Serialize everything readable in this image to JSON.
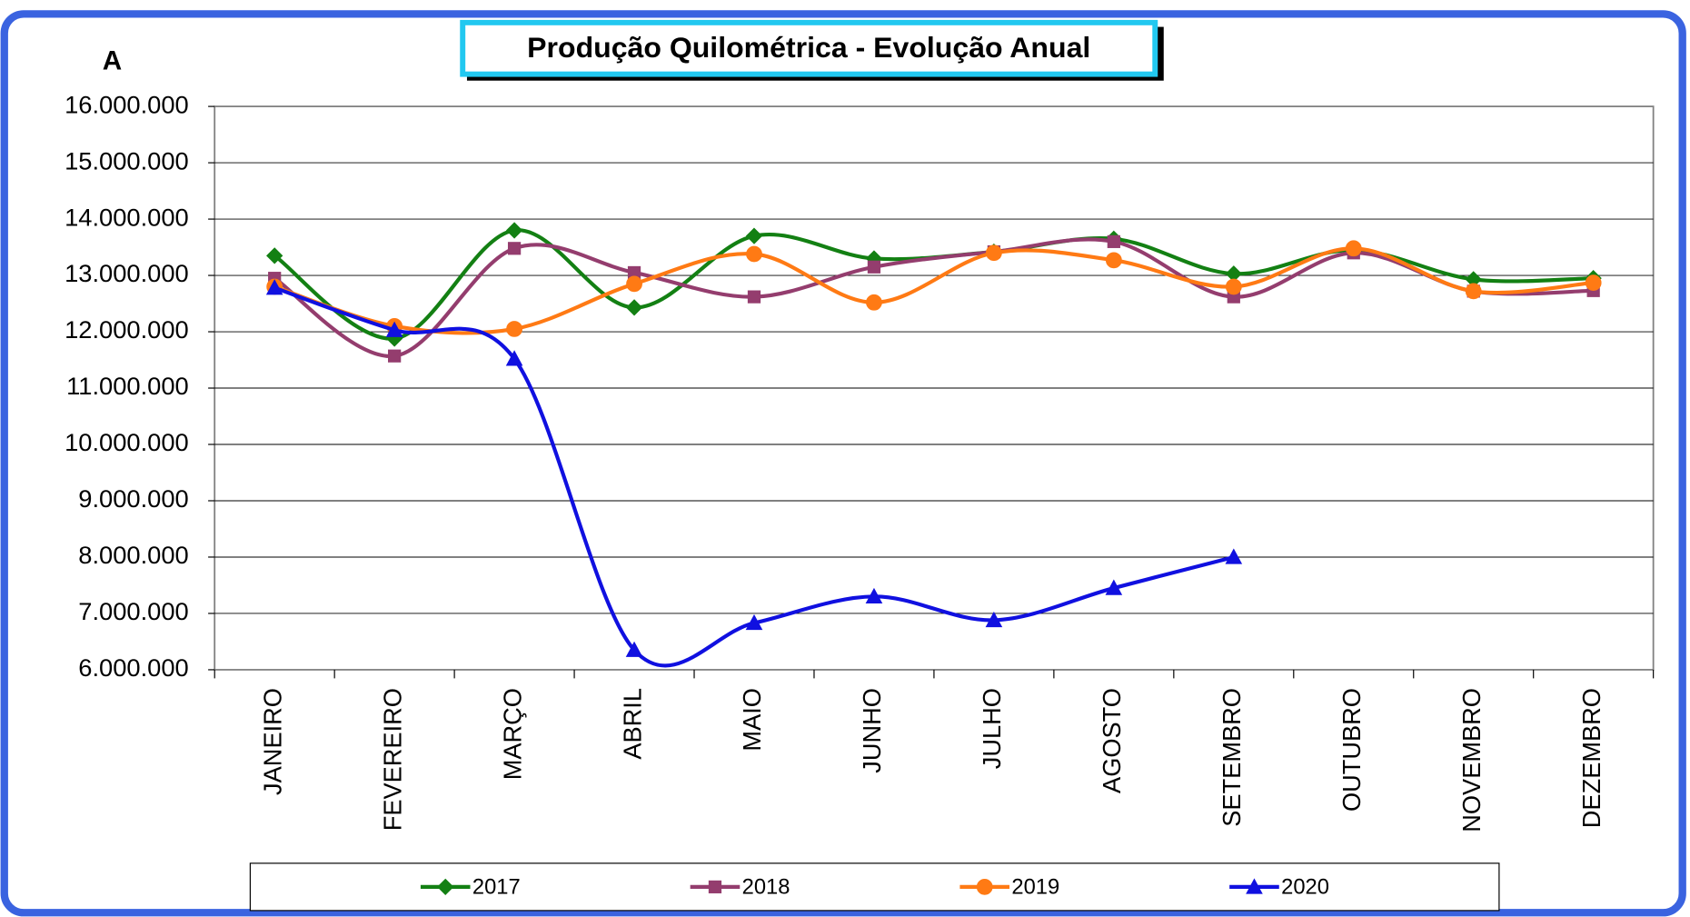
{
  "chart_data": {
    "type": "line",
    "title": "Produção Quilométrica  -  Evolução Anual",
    "panel_label": "A",
    "categories": [
      "JANEIRO",
      "FEVEREIRO",
      "MARÇO",
      "ABRIL",
      "MAIO",
      "JUNHO",
      "JULHO",
      "AGOSTO",
      "SETEMBRO",
      "OUTUBRO",
      "NOVEMBRO",
      "DEZEMBRO"
    ],
    "series": [
      {
        "name": "2017",
        "color": "#138013",
        "marker": "diamond",
        "values": [
          13350000,
          11880000,
          13800000,
          12430000,
          13700000,
          13300000,
          13420000,
          13650000,
          13030000,
          13450000,
          12930000,
          12950000
        ]
      },
      {
        "name": "2018",
        "color": "#943d6e",
        "marker": "square",
        "values": [
          12950000,
          11570000,
          13480000,
          13050000,
          12620000,
          13150000,
          13420000,
          13600000,
          12620000,
          13400000,
          12720000,
          12730000
        ]
      },
      {
        "name": "2019",
        "color": "#ff7a14",
        "marker": "circle",
        "values": [
          12800000,
          12100000,
          12050000,
          12850000,
          13380000,
          12520000,
          13400000,
          13270000,
          12800000,
          13480000,
          12720000,
          12870000
        ]
      },
      {
        "name": "2020",
        "color": "#1010e0",
        "marker": "triangle",
        "values": [
          12780000,
          12030000,
          11520000,
          6350000,
          6830000,
          7300000,
          6880000,
          7450000,
          8000000,
          null,
          null,
          null
        ]
      }
    ],
    "ylim": [
      6000000,
      16000000
    ],
    "yticks": [
      {
        "value": 6000000,
        "label": "6.000.000"
      },
      {
        "value": 7000000,
        "label": "7.000.000"
      },
      {
        "value": 8000000,
        "label": "8.000.000"
      },
      {
        "value": 9000000,
        "label": "9.000.000"
      },
      {
        "value": 10000000,
        "label": "10.000.000"
      },
      {
        "value": 11000000,
        "label": "11.000.000"
      },
      {
        "value": 12000000,
        "label": "12.000.000"
      },
      {
        "value": 13000000,
        "label": "13.000.000"
      },
      {
        "value": 14000000,
        "label": "14.000.000"
      },
      {
        "value": 15000000,
        "label": "15.000.000"
      },
      {
        "value": 16000000,
        "label": "16.000.000"
      }
    ],
    "grid": true,
    "legend": "bottom"
  }
}
